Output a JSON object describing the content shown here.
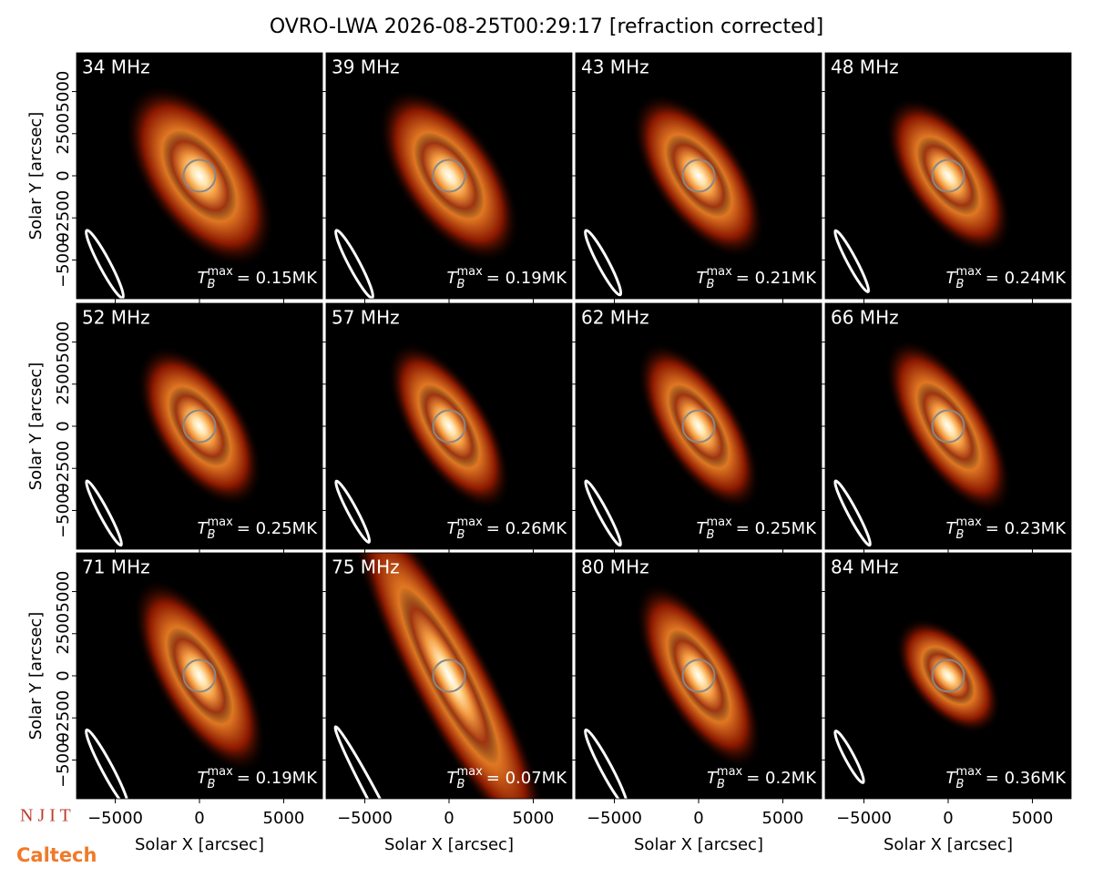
{
  "chart_data": {
    "type": "image_grid",
    "title": "OVRO-LWA 2026-08-25T00:29:17 [refraction corrected]",
    "xlabel": "Solar X [arcsec]",
    "ylabel": "Solar Y [arcsec]",
    "xlim": [
      -7300,
      7300
    ],
    "ylim": [
      -7300,
      7300
    ],
    "xticks": [
      {
        "value": -5000,
        "label": "−5000"
      },
      0,
      5000
    ],
    "yticks": [
      {
        "value": -5000,
        "label": "−5000"
      },
      {
        "value": -2500,
        "label": "−2500"
      },
      0,
      2500,
      5000
    ],
    "panels": [
      {
        "label": "34 MHz",
        "annotation": {
          "symbol": "T",
          "subscript": "B",
          "superscript": "max",
          "text": "= 0.15MK"
        }
      },
      {
        "label": "39 MHz",
        "annotation": {
          "symbol": "T",
          "subscript": "B",
          "superscript": "max",
          "text": "= 0.19MK"
        }
      },
      {
        "label": "43 MHz",
        "annotation": {
          "symbol": "T",
          "subscript": "B",
          "superscript": "max",
          "text": "= 0.21MK"
        }
      },
      {
        "label": "48 MHz",
        "annotation": {
          "symbol": "T",
          "subscript": "B",
          "superscript": "max",
          "text": "= 0.24MK"
        }
      },
      {
        "label": "52 MHz",
        "annotation": {
          "symbol": "T",
          "subscript": "B",
          "superscript": "max",
          "text": "= 0.25MK"
        }
      },
      {
        "label": "57 MHz",
        "annotation": {
          "symbol": "T",
          "subscript": "B",
          "superscript": "max",
          "text": "= 0.26MK"
        }
      },
      {
        "label": "62 MHz",
        "annotation": {
          "symbol": "T",
          "subscript": "B",
          "superscript": "max",
          "text": "= 0.25MK"
        }
      },
      {
        "label": "66 MHz",
        "annotation": {
          "symbol": "T",
          "subscript": "B",
          "superscript": "max",
          "text": "= 0.23MK"
        }
      },
      {
        "label": "71 MHz",
        "annotation": {
          "symbol": "T",
          "subscript": "B",
          "superscript": "max",
          "text": "= 0.19MK"
        }
      },
      {
        "label": "75 MHz",
        "annotation": {
          "symbol": "T",
          "subscript": "B",
          "superscript": "max",
          "text": "= 0.07MK"
        }
      },
      {
        "label": "80 MHz",
        "annotation": {
          "symbol": "T",
          "subscript": "B",
          "superscript": "max",
          "text": "= 0.2MK"
        }
      },
      {
        "label": "84 MHz",
        "annotation": {
          "symbol": "T",
          "subscript": "B",
          "superscript": "max",
          "text": "= 0.36MK"
        }
      }
    ]
  },
  "logos": {
    "top": "N J I T",
    "bottom": "Caltech"
  }
}
